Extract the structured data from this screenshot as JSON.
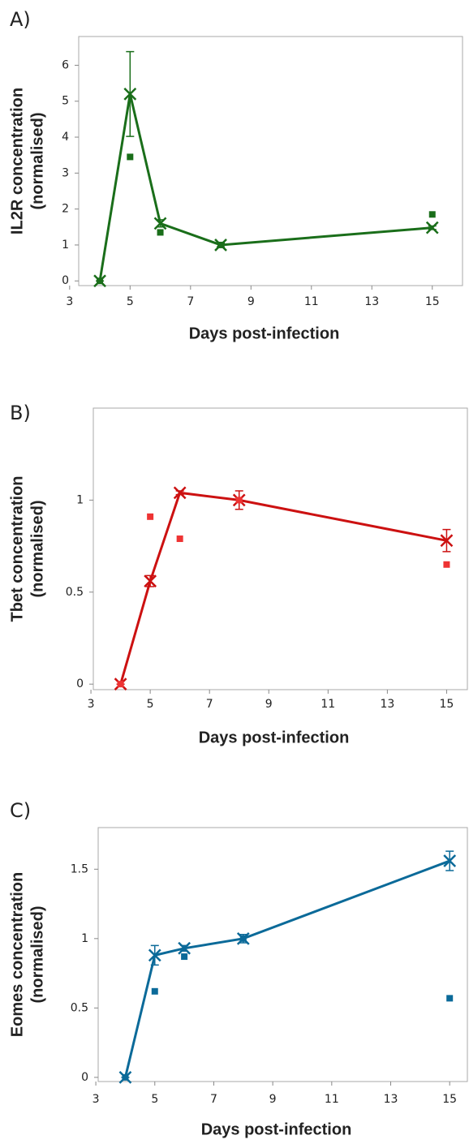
{
  "chart_data": [
    {
      "type": "line",
      "label": "A)",
      "xlabel": "Days post-infection",
      "ylabel": [
        "IL2R concentration",
        "(normalised)"
      ],
      "x": [
        4,
        5,
        6,
        8,
        15
      ],
      "xlim": [
        3.3,
        16
      ],
      "xticks": [
        3,
        5,
        7,
        9,
        11,
        13,
        15
      ],
      "ylim": [
        -0.13,
        6.8
      ],
      "yticks": [
        0,
        1,
        2,
        3,
        4,
        5,
        6
      ],
      "series": [
        {
          "color": "#1a6e1a",
          "marker": "x",
          "line": true,
          "values": [
            0,
            5.2,
            1.6,
            1.0,
            1.48
          ],
          "errors": [
            0,
            1.18,
            0.1,
            0.05,
            0.05
          ]
        },
        {
          "color": "#1a6e1a",
          "marker": "square",
          "line": false,
          "values": [
            0,
            3.45,
            1.35,
            1.0,
            1.85
          ]
        }
      ]
    },
    {
      "type": "line",
      "label": "B)",
      "xlabel": "Days post-infection",
      "ylabel": [
        "Tbet concentration",
        "(normalised)"
      ],
      "x": [
        4,
        5,
        6,
        8,
        15
      ],
      "xlim": [
        3.08,
        15.7
      ],
      "xticks": [
        3,
        5,
        7,
        9,
        11,
        13,
        15
      ],
      "ylim": [
        -0.03,
        1.5
      ],
      "yticks": [
        0,
        0.5,
        1
      ],
      "series": [
        {
          "color": "#cc1111",
          "marker": "x",
          "line": true,
          "values": [
            0,
            0.56,
            1.04,
            1.0,
            0.78
          ],
          "errors": [
            0,
            0.03,
            0.01,
            0.05,
            0.06
          ]
        },
        {
          "color": "#ee3333",
          "marker": "square",
          "line": false,
          "values": [
            0,
            0.91,
            0.79,
            1.0,
            0.65
          ]
        }
      ]
    },
    {
      "type": "line",
      "label": "C)",
      "xlabel": "Days post-infection",
      "ylabel": [
        "Eomes concentration",
        "(normalised)"
      ],
      "x": [
        4,
        5,
        6,
        8,
        15
      ],
      "xlim": [
        3.08,
        15.6
      ],
      "xticks": [
        3,
        5,
        7,
        9,
        11,
        13,
        15
      ],
      "ylim": [
        -0.03,
        1.8
      ],
      "yticks": [
        0,
        0.5,
        1,
        1.5
      ],
      "series": [
        {
          "color": "#0b6a99",
          "marker": "x",
          "line": true,
          "values": [
            0,
            0.88,
            0.93,
            1.0,
            1.56
          ],
          "errors": [
            0,
            0.07,
            0.02,
            0.03,
            0.07
          ]
        },
        {
          "color": "#0b6a99",
          "marker": "square",
          "line": false,
          "values": [
            0,
            0.62,
            0.87,
            1.0,
            0.57
          ]
        }
      ]
    }
  ]
}
